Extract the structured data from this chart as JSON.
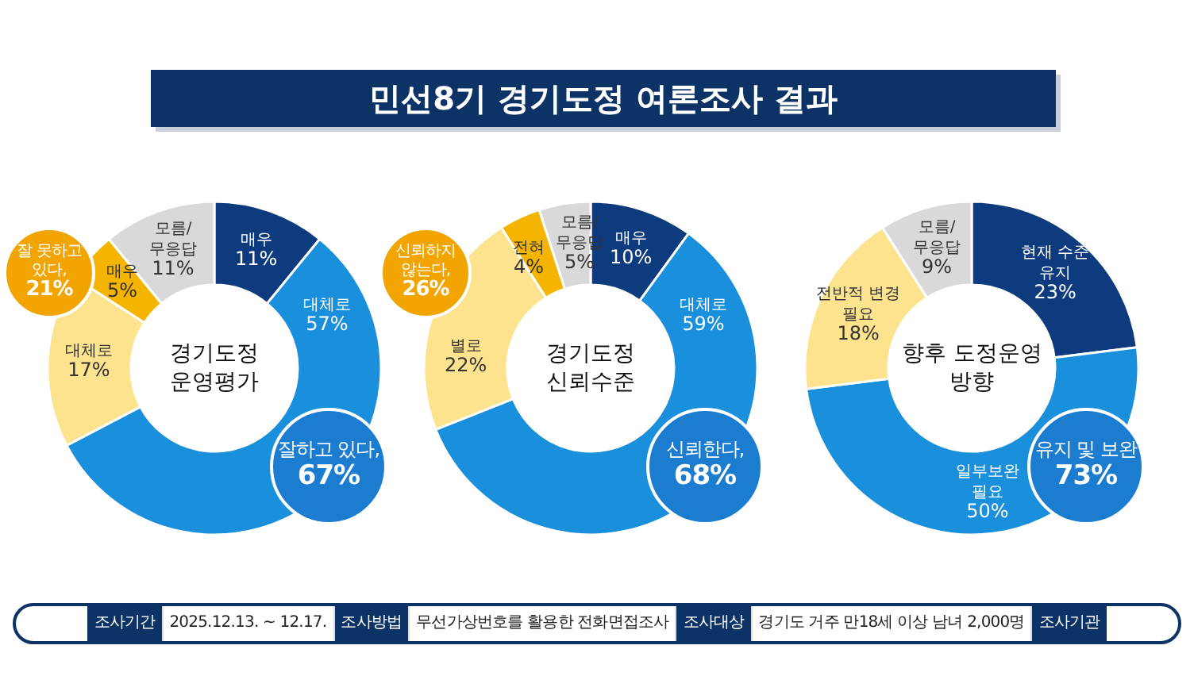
{
  "chart_data": [
    {
      "type": "other",
      "title": "민선8기 경기도정 여론조사 결과",
      "annotations": [
        "조사기간",
        "2025.12.13. ~ 12.17.",
        "조사방법",
        "무선가상번호를 활용한 전화면접조사",
        "조사대상",
        "경기도 거주 만18세 이상 남녀 2,000명",
        "조사기관"
      ]
    },
    {
      "type": "donut",
      "title": "경기도정 운영평가",
      "categories": [
        "매우",
        "대체로",
        "대체로",
        "매우",
        "모름/무응답"
      ],
      "values": [
        11,
        57,
        17,
        5,
        11
      ],
      "value_labels": [
        "11%",
        "57%",
        "17%",
        "5%",
        "11%"
      ],
      "colors": [
        "#0d3b7e",
        "#1a8fdc",
        "#fde38e",
        "#f5b400",
        "#d9d9d9"
      ],
      "annotations": [
        "잘하고 있다, 67%",
        "잘 못하고 있다, 21%"
      ]
    },
    {
      "type": "donut",
      "title": "경기도정 신뢰수준",
      "categories": [
        "매우",
        "대체로",
        "별로",
        "전혀",
        "모름/무응답"
      ],
      "values": [
        10,
        59,
        22,
        4,
        5
      ],
      "value_labels": [
        "10%",
        "59%",
        "22%",
        "4%",
        "5%"
      ],
      "colors": [
        "#0d3b7e",
        "#1a8fdc",
        "#fde38e",
        "#f5b400",
        "#d9d9d9"
      ],
      "annotations": [
        "신뢰한다, 68%",
        "신뢰하지 않는다, 26%"
      ]
    },
    {
      "type": "donut",
      "title": "향후 도정운영 방향",
      "categories": [
        "현재 수준 유지",
        "일부보완 필요",
        "전반적 변경 필요",
        "모름/무응답"
      ],
      "values": [
        23,
        50,
        18,
        9
      ],
      "value_labels": [
        "23%",
        "50%",
        "18%",
        "9%"
      ],
      "colors": [
        "#0d3b7e",
        "#1a8fdc",
        "#fde38e",
        "#d9d9d9"
      ],
      "annotations": [
        "유지 및 보완 73%"
      ]
    }
  ]
}
